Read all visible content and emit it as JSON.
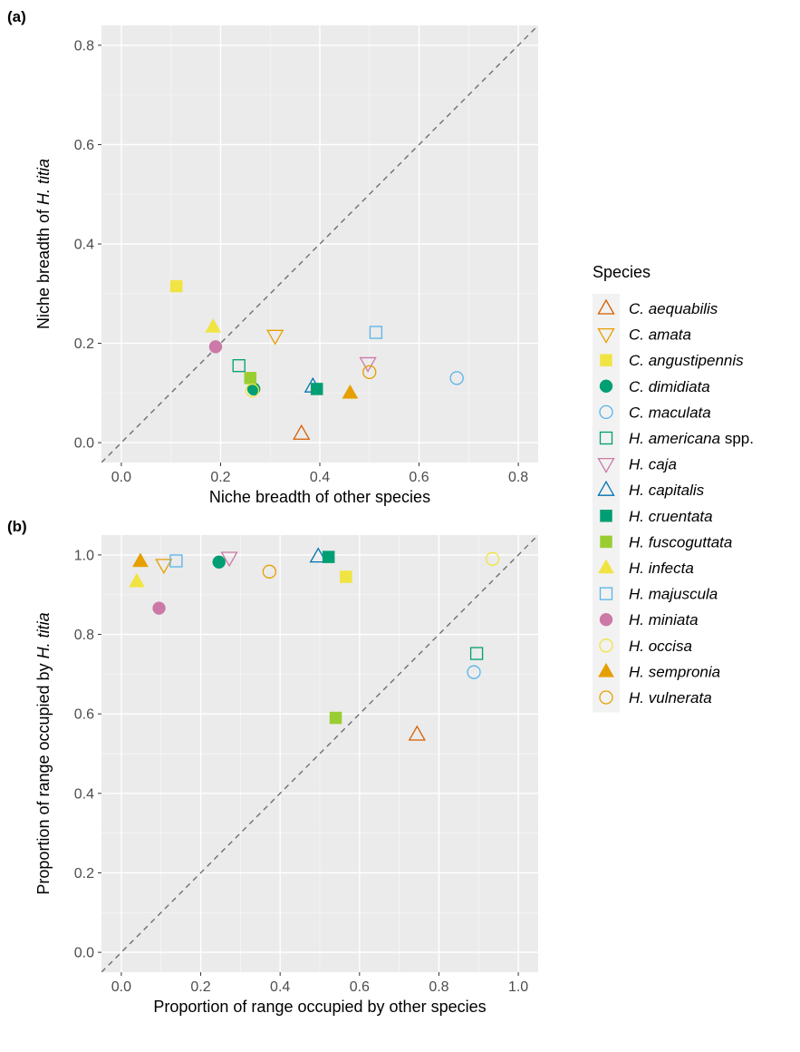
{
  "figure": {
    "legend_title": "Species"
  },
  "species": [
    {
      "id": "c-aequabilis",
      "genus": "C.",
      "epithet": "aequabilis",
      "suffix": "",
      "shape": "triangle-up",
      "filled": false,
      "color": "#D55E00"
    },
    {
      "id": "c-amata",
      "genus": "C.",
      "epithet": "amata",
      "suffix": "",
      "shape": "triangle-down",
      "filled": false,
      "color": "#E69F00"
    },
    {
      "id": "c-angustipennis",
      "genus": "C.",
      "epithet": "angustipennis",
      "suffix": "",
      "shape": "square",
      "filled": true,
      "color": "#F0E442"
    },
    {
      "id": "c-dimidiata",
      "genus": "C.",
      "epithet": "dimidiata",
      "suffix": "",
      "shape": "circle",
      "filled": true,
      "color": "#009E73"
    },
    {
      "id": "c-maculata",
      "genus": "C.",
      "epithet": "maculata",
      "suffix": "",
      "shape": "circle",
      "filled": false,
      "color": "#56B4E9"
    },
    {
      "id": "h-americana",
      "genus": "H.",
      "epithet": "americana",
      "suffix": " spp.",
      "shape": "square",
      "filled": false,
      "color": "#009E73"
    },
    {
      "id": "h-caja",
      "genus": "H.",
      "epithet": "caja",
      "suffix": "",
      "shape": "triangle-down",
      "filled": false,
      "color": "#CC79A7"
    },
    {
      "id": "h-capitalis",
      "genus": "H.",
      "epithet": "capitalis",
      "suffix": "",
      "shape": "triangle-up",
      "filled": false,
      "color": "#0072B2"
    },
    {
      "id": "h-cruentata",
      "genus": "H.",
      "epithet": "cruentata",
      "suffix": "",
      "shape": "square",
      "filled": true,
      "color": "#009E73"
    },
    {
      "id": "h-fuscoguttata",
      "genus": "H.",
      "epithet": "fuscoguttata",
      "suffix": "",
      "shape": "square",
      "filled": true,
      "color": "#9ACD32"
    },
    {
      "id": "h-infecta",
      "genus": "H.",
      "epithet": "infecta",
      "suffix": "",
      "shape": "triangle-up",
      "filled": true,
      "color": "#F0E442"
    },
    {
      "id": "h-majuscula",
      "genus": "H.",
      "epithet": "majuscula",
      "suffix": "",
      "shape": "square",
      "filled": false,
      "color": "#56B4E9"
    },
    {
      "id": "h-miniata",
      "genus": "H.",
      "epithet": "miniata",
      "suffix": "",
      "shape": "circle",
      "filled": true,
      "color": "#CC79A7"
    },
    {
      "id": "h-occisa",
      "genus": "H.",
      "epithet": "occisa",
      "suffix": "",
      "shape": "circle",
      "filled": false,
      "color": "#F0E442"
    },
    {
      "id": "h-sempronia",
      "genus": "H.",
      "epithet": "sempronia",
      "suffix": "",
      "shape": "triangle-up",
      "filled": true,
      "color": "#E69F00"
    },
    {
      "id": "h-vulnerata",
      "genus": "H.",
      "epithet": "vulnerata",
      "suffix": "",
      "shape": "circle",
      "filled": false,
      "color": "#E69F00"
    }
  ],
  "chart_data": [
    {
      "type": "scatter",
      "panel_label": "(a)",
      "xlabel": "Niche breadth of other species",
      "ylabel_prefix": "Niche breadth of ",
      "ylabel_italic": "H. titia",
      "xlim": [
        -0.04,
        0.84
      ],
      "ylim": [
        -0.04,
        0.84
      ],
      "xticks": [
        0.0,
        0.2,
        0.4,
        0.6,
        0.8
      ],
      "yticks": [
        0.0,
        0.2,
        0.4,
        0.6,
        0.8
      ],
      "xtick_labels": [
        "0.0",
        "0.2",
        "0.4",
        "0.6",
        "0.8"
      ],
      "ytick_labels": [
        "0.0",
        "0.2",
        "0.4",
        "0.6",
        "0.8"
      ],
      "reference_line": "y = x",
      "grid": true,
      "points": [
        {
          "species": "c-aequabilis",
          "x": 0.363,
          "y": 0.018
        },
        {
          "species": "c-amata",
          "x": 0.31,
          "y": 0.215
        },
        {
          "species": "c-angustipennis",
          "x": 0.111,
          "y": 0.315
        },
        {
          "species": "c-dimidiata",
          "x": 0.267,
          "y": 0.108
        },
        {
          "species": "c-maculata",
          "x": 0.676,
          "y": 0.13
        },
        {
          "species": "h-americana",
          "x": 0.237,
          "y": 0.155
        },
        {
          "species": "h-caja",
          "x": 0.497,
          "y": 0.16
        },
        {
          "species": "h-capitalis",
          "x": 0.386,
          "y": 0.113
        },
        {
          "species": "h-cruentata",
          "x": 0.394,
          "y": 0.108
        },
        {
          "species": "h-fuscoguttata",
          "x": 0.26,
          "y": 0.13
        },
        {
          "species": "h-infecta",
          "x": 0.185,
          "y": 0.233
        },
        {
          "species": "h-majuscula",
          "x": 0.513,
          "y": 0.222
        },
        {
          "species": "h-miniata",
          "x": 0.19,
          "y": 0.193
        },
        {
          "species": "h-occisa",
          "x": 0.264,
          "y": 0.105
        },
        {
          "species": "h-sempronia",
          "x": 0.461,
          "y": 0.1
        },
        {
          "species": "h-vulnerata",
          "x": 0.5,
          "y": 0.142
        }
      ]
    },
    {
      "type": "scatter",
      "panel_label": "(b)",
      "xlabel": "Proportion of range occupied by other species",
      "ylabel_prefix": "Proportion of range occupied by ",
      "ylabel_italic": "H. titia",
      "xlim": [
        -0.05,
        1.05
      ],
      "ylim": [
        -0.05,
        1.05
      ],
      "xticks": [
        0.0,
        0.2,
        0.4,
        0.6,
        0.8,
        1.0
      ],
      "yticks": [
        0.0,
        0.2,
        0.4,
        0.6,
        0.8,
        1.0
      ],
      "xtick_labels": [
        "0.0",
        "0.2",
        "0.4",
        "0.6",
        "0.8",
        "1.0"
      ],
      "ytick_labels": [
        "0.0",
        "0.2",
        "0.4",
        "0.6",
        "0.8",
        "1.0"
      ],
      "reference_line": "y = x",
      "grid": true,
      "points": [
        {
          "species": "c-aequabilis",
          "x": 0.745,
          "y": 0.548
        },
        {
          "species": "c-amata",
          "x": 0.107,
          "y": 0.975
        },
        {
          "species": "c-angustipennis",
          "x": 0.566,
          "y": 0.945
        },
        {
          "species": "c-dimidiata",
          "x": 0.246,
          "y": 0.982
        },
        {
          "species": "c-maculata",
          "x": 0.888,
          "y": 0.705
        },
        {
          "species": "h-americana",
          "x": 0.895,
          "y": 0.752
        },
        {
          "species": "h-caja",
          "x": 0.272,
          "y": 0.993
        },
        {
          "species": "h-capitalis",
          "x": 0.496,
          "y": 0.996
        },
        {
          "species": "h-cruentata",
          "x": 0.522,
          "y": 0.995
        },
        {
          "species": "h-fuscoguttata",
          "x": 0.54,
          "y": 0.59
        },
        {
          "species": "h-infecta",
          "x": 0.039,
          "y": 0.933
        },
        {
          "species": "h-majuscula",
          "x": 0.138,
          "y": 0.985
        },
        {
          "species": "h-miniata",
          "x": 0.095,
          "y": 0.866
        },
        {
          "species": "h-occisa",
          "x": 0.935,
          "y": 0.99
        },
        {
          "species": "h-sempronia",
          "x": 0.048,
          "y": 0.984
        },
        {
          "species": "h-vulnerata",
          "x": 0.373,
          "y": 0.958
        }
      ]
    }
  ]
}
